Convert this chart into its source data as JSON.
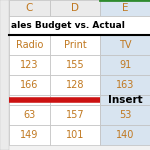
{
  "title": "ales Budget vs. Actual",
  "col_headers": [
    "C",
    "D",
    "E"
  ],
  "row_labels": [
    "Radio",
    "Print",
    "TV"
  ],
  "rows": [
    [
      123,
      155,
      91
    ],
    [
      166,
      128,
      163
    ],
    [
      63,
      157,
      53
    ],
    [
      149,
      101,
      140
    ]
  ],
  "insert_label": "Insert",
  "col_header_color": "#c07820",
  "col_e_bg": "#d8e4f0",
  "col_cd_bg": "#ffffff",
  "col_header_bg": "#ebebeb",
  "col_e_header_bg": "#d8e4f0",
  "red_line_color": "#cc1111",
  "border_color": "#c0c0c0",
  "title_color": "#000000",
  "data_color": "#c07820",
  "insert_color": "#000000",
  "title_bold": true,
  "green_line_color": "#2e8b2e",
  "fig_bg": "#f2f2f2"
}
